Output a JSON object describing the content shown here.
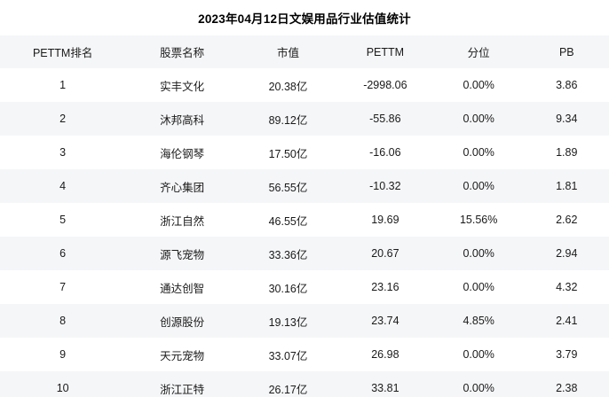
{
  "title": "2023年04月12日文娱用品行业估值统计",
  "colors": {
    "background": "#ffffff",
    "stripe": "#f5f6f8",
    "text": "#1a1a1a",
    "title_text": "#000000"
  },
  "chart_data": {
    "type": "table",
    "title": "2023年04月12日文娱用品行业估值统计",
    "columns": [
      "PETTM排名",
      "股票名称",
      "市值",
      "PETTM",
      "分位",
      "PB"
    ],
    "rows": [
      [
        "1",
        "实丰文化",
        "20.38亿",
        "-2998.06",
        "0.00%",
        "3.86"
      ],
      [
        "2",
        "沐邦高科",
        "89.12亿",
        "-55.86",
        "0.00%",
        "9.34"
      ],
      [
        "3",
        "海伦钢琴",
        "17.50亿",
        "-16.06",
        "0.00%",
        "1.89"
      ],
      [
        "4",
        "齐心集团",
        "56.55亿",
        "-10.32",
        "0.00%",
        "1.81"
      ],
      [
        "5",
        "浙江自然",
        "46.55亿",
        "19.69",
        "15.56%",
        "2.62"
      ],
      [
        "6",
        "源飞宠物",
        "33.36亿",
        "20.67",
        "0.00%",
        "2.94"
      ],
      [
        "7",
        "通达创智",
        "30.16亿",
        "23.16",
        "0.00%",
        "4.32"
      ],
      [
        "8",
        "创源股份",
        "19.13亿",
        "23.74",
        "4.85%",
        "2.41"
      ],
      [
        "9",
        "天元宠物",
        "33.07亿",
        "26.98",
        "0.00%",
        "3.79"
      ],
      [
        "10",
        "浙江正特",
        "26.17亿",
        "33.81",
        "0.00%",
        "2.38"
      ]
    ],
    "layout": {
      "grid": false,
      "header_background": "#f5f6f8",
      "row_striping": "even rows shaded, starting after white row 1",
      "cell_alignment": "center"
    }
  }
}
